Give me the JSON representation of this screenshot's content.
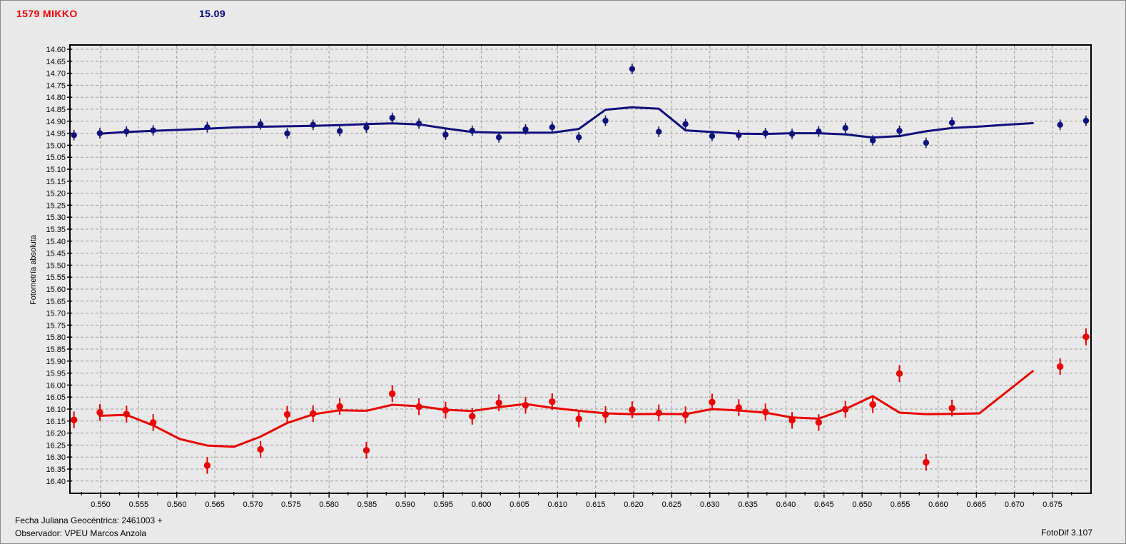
{
  "header": {
    "object_name": "1579 MIKKO",
    "magnitude": "15.09"
  },
  "footer": {
    "julian_date": "Fecha Juliana Geocéntrica: 2461003 +",
    "observer": "Observador: VPEU Marcos Anzola",
    "app_version": "FotoDif 3.107"
  },
  "colors": {
    "background": "#e9e9e9",
    "frame": "#000000",
    "grid": "#9b9b9b",
    "title_red": "#ff0000",
    "title_navy": "#00007f",
    "series_blue": "#10107e",
    "series_red": "#ee0000"
  },
  "chart_data": {
    "type": "scatter",
    "title": "",
    "xlabel": "",
    "ylabel": "Fotometría absoluta",
    "grid": true,
    "y_axis_inverted_magnitudes": true,
    "x_tick_labels": [
      "0.550",
      "0.555",
      "0.560",
      "0.565",
      "0.570",
      "0.575",
      "0.580",
      "0.585",
      "0.590",
      "0.595",
      "0.600",
      "0.605",
      "0.610",
      "0.615",
      "0.620",
      "0.625",
      "0.630",
      "0.635",
      "0.640",
      "0.645",
      "0.650",
      "0.655",
      "0.660",
      "0.665",
      "0.670",
      "0.675"
    ],
    "x_minor_tick_step": 0.0025,
    "y_tick_labels": [
      "14.60",
      "14.65",
      "14.70",
      "14.75",
      "14.80",
      "14.85",
      "14.90",
      "14.95",
      "15.00",
      "15.05",
      "15.10",
      "15.15",
      "15.20",
      "15.25",
      "15.30",
      "15.35",
      "15.40",
      "15.45",
      "15.50",
      "15.55",
      "15.60",
      "15.65",
      "15.70",
      "15.75",
      "15.80",
      "15.85",
      "15.90",
      "15.95",
      "16.00",
      "16.05",
      "16.10",
      "16.15",
      "16.20",
      "16.25",
      "16.30",
      "16.35",
      "16.40"
    ],
    "x_range_visible": [
      0.546,
      0.6801
    ],
    "y_range_visible": [
      14.582,
      16.451
    ],
    "series": [
      {
        "name": "comparison-curve-blue",
        "color": "#10107e",
        "point_radius": 4.2,
        "error": 0.022,
        "points": [
          [
            0.5465,
            14.958
          ],
          [
            0.5499,
            14.95
          ],
          [
            0.5534,
            14.943
          ],
          [
            0.5569,
            14.938
          ],
          [
            0.564,
            14.925
          ],
          [
            0.571,
            14.913
          ],
          [
            0.5745,
            14.951
          ],
          [
            0.5779,
            14.915
          ],
          [
            0.5814,
            14.941
          ],
          [
            0.5849,
            14.926
          ],
          [
            0.5883,
            14.886
          ],
          [
            0.5918,
            14.91
          ],
          [
            0.5953,
            14.956
          ],
          [
            0.5988,
            14.94
          ],
          [
            0.6023,
            14.967
          ],
          [
            0.6058,
            14.934
          ],
          [
            0.6093,
            14.925
          ],
          [
            0.6128,
            14.967
          ],
          [
            0.6163,
            14.898
          ],
          [
            0.6198,
            14.682
          ],
          [
            0.6233,
            14.944
          ],
          [
            0.6268,
            14.912
          ],
          [
            0.6303,
            14.962
          ],
          [
            0.6338,
            14.958
          ],
          [
            0.6373,
            14.95
          ],
          [
            0.6408,
            14.953
          ],
          [
            0.6443,
            14.943
          ],
          [
            0.6478,
            14.928
          ],
          [
            0.6514,
            14.98
          ],
          [
            0.6549,
            14.94
          ],
          [
            0.6584,
            14.99
          ],
          [
            0.6618,
            14.906
          ],
          [
            0.676,
            14.915
          ],
          [
            0.6794,
            14.898
          ]
        ],
        "fit_line": [
          [
            0.5499,
            14.952
          ],
          [
            0.5534,
            14.945
          ],
          [
            0.5569,
            14.94
          ],
          [
            0.5604,
            14.936
          ],
          [
            0.564,
            14.931
          ],
          [
            0.5675,
            14.926
          ],
          [
            0.571,
            14.923
          ],
          [
            0.5745,
            14.921
          ],
          [
            0.5779,
            14.919
          ],
          [
            0.5814,
            14.916
          ],
          [
            0.5849,
            14.912
          ],
          [
            0.5883,
            14.909
          ],
          [
            0.5918,
            14.913
          ],
          [
            0.5953,
            14.93
          ],
          [
            0.5988,
            14.945
          ],
          [
            0.6023,
            14.948
          ],
          [
            0.6058,
            14.948
          ],
          [
            0.6093,
            14.948
          ],
          [
            0.6128,
            14.932
          ],
          [
            0.6163,
            14.852
          ],
          [
            0.6198,
            14.842
          ],
          [
            0.6233,
            14.848
          ],
          [
            0.6268,
            14.938
          ],
          [
            0.6303,
            14.945
          ],
          [
            0.6338,
            14.952
          ],
          [
            0.6373,
            14.953
          ],
          [
            0.6408,
            14.95
          ],
          [
            0.6443,
            14.95
          ],
          [
            0.6478,
            14.955
          ],
          [
            0.6514,
            14.968
          ],
          [
            0.6549,
            14.962
          ],
          [
            0.6584,
            14.942
          ],
          [
            0.6618,
            14.928
          ],
          [
            0.6654,
            14.922
          ],
          [
            0.6689,
            14.915
          ],
          [
            0.6724,
            14.908
          ]
        ]
      },
      {
        "name": "target-curve-red",
        "color": "#ee0000",
        "point_radius": 4.7,
        "error": 0.035,
        "points": [
          [
            0.5465,
            16.145
          ],
          [
            0.5499,
            16.114
          ],
          [
            0.5534,
            16.121
          ],
          [
            0.5569,
            16.156
          ],
          [
            0.564,
            16.335
          ],
          [
            0.571,
            16.268
          ],
          [
            0.5745,
            16.122
          ],
          [
            0.5779,
            16.119
          ],
          [
            0.5814,
            16.089
          ],
          [
            0.5849,
            16.272
          ],
          [
            0.5883,
            16.036
          ],
          [
            0.5918,
            16.09
          ],
          [
            0.5953,
            16.105
          ],
          [
            0.5988,
            16.13
          ],
          [
            0.6023,
            16.074
          ],
          [
            0.6058,
            16.084
          ],
          [
            0.6093,
            16.069
          ],
          [
            0.6128,
            16.141
          ],
          [
            0.6163,
            16.123
          ],
          [
            0.6198,
            16.103
          ],
          [
            0.6233,
            16.116
          ],
          [
            0.6268,
            16.124
          ],
          [
            0.6303,
            16.071
          ],
          [
            0.6338,
            16.094
          ],
          [
            0.6373,
            16.112
          ],
          [
            0.6408,
            16.147
          ],
          [
            0.6443,
            16.156
          ],
          [
            0.6478,
            16.101
          ],
          [
            0.6514,
            16.081
          ],
          [
            0.6549,
            15.952
          ],
          [
            0.6584,
            16.322
          ],
          [
            0.6618,
            16.096
          ],
          [
            0.676,
            15.923
          ],
          [
            0.6794,
            15.799
          ]
        ],
        "fit_line": [
          [
            0.5499,
            16.128
          ],
          [
            0.5534,
            16.124
          ],
          [
            0.5569,
            16.168
          ],
          [
            0.5604,
            16.225
          ],
          [
            0.564,
            16.252
          ],
          [
            0.5675,
            16.257
          ],
          [
            0.571,
            16.215
          ],
          [
            0.5745,
            16.158
          ],
          [
            0.5779,
            16.122
          ],
          [
            0.5814,
            16.105
          ],
          [
            0.5849,
            16.107
          ],
          [
            0.5883,
            16.082
          ],
          [
            0.5918,
            16.088
          ],
          [
            0.5953,
            16.103
          ],
          [
            0.5988,
            16.108
          ],
          [
            0.6023,
            16.092
          ],
          [
            0.6058,
            16.079
          ],
          [
            0.6093,
            16.095
          ],
          [
            0.6128,
            16.107
          ],
          [
            0.6163,
            16.118
          ],
          [
            0.6198,
            16.121
          ],
          [
            0.6233,
            16.12
          ],
          [
            0.6268,
            16.121
          ],
          [
            0.6303,
            16.1
          ],
          [
            0.6338,
            16.106
          ],
          [
            0.6373,
            16.115
          ],
          [
            0.6408,
            16.135
          ],
          [
            0.6443,
            16.14
          ],
          [
            0.6478,
            16.1
          ],
          [
            0.6514,
            16.046
          ],
          [
            0.6549,
            16.115
          ],
          [
            0.6584,
            16.121
          ],
          [
            0.6618,
            16.12
          ],
          [
            0.6654,
            16.118
          ],
          [
            0.6689,
            16.03
          ],
          [
            0.6724,
            15.942
          ]
        ]
      }
    ]
  }
}
